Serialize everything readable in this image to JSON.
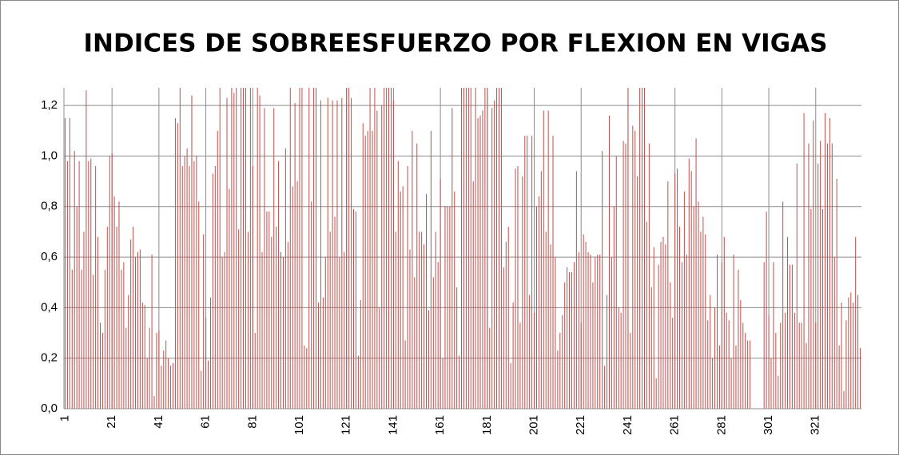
{
  "chart_data": {
    "type": "bar",
    "title": "INDICES DE SOBREESFUERZO POR FLEXION EN VIGAS",
    "color": "#c0504d",
    "grid": true,
    "ylim": [
      0,
      1.27
    ],
    "yticks": [
      {
        "value": 0,
        "label": "0,0"
      },
      {
        "value": 0.2,
        "label": "0,2"
      },
      {
        "value": 0.4,
        "label": "0,4"
      },
      {
        "value": 0.6,
        "label": "0,6"
      },
      {
        "value": 0.8,
        "label": "0,8"
      },
      {
        "value": 1.0,
        "label": "1,0"
      },
      {
        "value": 1.2,
        "label": "1,2"
      }
    ],
    "categories": [
      "1",
      null,
      null,
      null,
      null,
      null,
      null,
      null,
      null,
      null,
      null,
      null,
      null,
      null,
      null,
      null,
      null,
      null,
      null,
      null,
      "21",
      null,
      null,
      null,
      null,
      null,
      null,
      null,
      null,
      null,
      null,
      null,
      null,
      null,
      null,
      null,
      null,
      null,
      null,
      null,
      "41",
      null,
      null,
      null,
      null,
      null,
      null,
      null,
      null,
      null,
      null,
      null,
      null,
      null,
      null,
      null,
      null,
      null,
      null,
      null,
      "61",
      null,
      null,
      null,
      null,
      null,
      null,
      null,
      null,
      null,
      null,
      null,
      null,
      null,
      null,
      null,
      null,
      null,
      null,
      null,
      "81",
      null,
      null,
      null,
      null,
      null,
      null,
      null,
      null,
      null,
      null,
      null,
      null,
      null,
      null,
      null,
      null,
      null,
      null,
      null,
      "101",
      null,
      null,
      null,
      null,
      null,
      null,
      null,
      null,
      null,
      null,
      null,
      null,
      null,
      null,
      null,
      null,
      null,
      null,
      null,
      "121",
      null,
      null,
      null,
      null,
      null,
      null,
      null,
      null,
      null,
      null,
      null,
      null,
      null,
      null,
      null,
      null,
      null,
      null,
      null,
      "141",
      null,
      null,
      null,
      null,
      null,
      null,
      null,
      null,
      null,
      null,
      null,
      null,
      null,
      null,
      null,
      null,
      null,
      null,
      null,
      "161",
      null,
      null,
      null,
      null,
      null,
      null,
      null,
      null,
      null,
      null,
      null,
      null,
      null,
      null,
      null,
      null,
      null,
      null,
      null,
      "181",
      null,
      null,
      null,
      null,
      null,
      null,
      null,
      null,
      null,
      null,
      null,
      null,
      null,
      null,
      null,
      null,
      null,
      null,
      null,
      "201",
      null,
      null,
      null,
      null,
      null,
      null,
      null,
      null,
      null,
      null,
      null,
      null,
      null,
      null,
      null,
      null,
      null,
      null,
      null,
      "221",
      null,
      null,
      null,
      null,
      null,
      null,
      null,
      null,
      null,
      null,
      null,
      null,
      null,
      null,
      null,
      null,
      null,
      null,
      null,
      "241",
      null,
      null,
      null,
      null,
      null,
      null,
      null,
      null,
      null,
      null,
      null,
      null,
      null,
      null,
      null,
      null,
      null,
      null,
      null,
      "261",
      null,
      null,
      null,
      null,
      null,
      null,
      null,
      null,
      null,
      null,
      null,
      null,
      null,
      null,
      null,
      null,
      null,
      null,
      null,
      "281",
      null,
      null,
      null,
      null,
      null,
      null,
      null,
      null,
      null,
      null,
      null,
      null,
      null,
      null,
      null,
      null,
      null,
      null,
      null,
      "301",
      null,
      null,
      null,
      null,
      null,
      null,
      null,
      null,
      null,
      null,
      null,
      null,
      null,
      null,
      null,
      null,
      null,
      null,
      null,
      "321",
      null,
      null,
      null,
      null,
      null,
      null,
      null,
      null,
      null,
      null,
      null,
      null,
      null,
      null,
      null,
      null,
      null,
      null,
      null
    ],
    "values": [
      1.15,
      0.98,
      1.15,
      0.55,
      1.02,
      0.8,
      0.98,
      0.55,
      0.7,
      1.26,
      0.98,
      0.99,
      0.53,
      0.96,
      0.68,
      0.34,
      0.3,
      0.55,
      0.72,
      1.0,
      1.01,
      0.84,
      0.72,
      0.82,
      0.55,
      0.58,
      0.32,
      0.45,
      0.67,
      0.72,
      0.6,
      0.62,
      0.63,
      0.42,
      0.41,
      0.2,
      0.32,
      0.61,
      0.05,
      0.3,
      0.31,
      0.17,
      0.23,
      0.27,
      0.2,
      0.17,
      0.18,
      1.15,
      1.13,
      1.27,
      0.96,
      1.0,
      1.03,
      0.96,
      1.24,
      0.98,
      1.0,
      0.82,
      0.15,
      0.69,
      0.36,
      0.19,
      0.44,
      0.93,
      0.96,
      1.1,
      1.27,
      0.6,
      0.62,
      1.23,
      0.87,
      1.27,
      1.25,
      1.27,
      0.71,
      1.27,
      1.27,
      1.27,
      0.7,
      1.27,
      0.96,
      0.3,
      1.27,
      1.24,
      0.62,
      1.19,
      0.78,
      0.78,
      0.68,
      1.19,
      0.72,
      0.98,
      0.62,
      0.6,
      1.03,
      0.66,
      1.27,
      0.88,
      1.21,
      0.9,
      1.27,
      1.27,
      0.25,
      0.24,
      1.27,
      0.82,
      1.27,
      1.27,
      0.42,
      1.22,
      0.44,
      0.6,
      1.23,
      0.7,
      1.22,
      0.76,
      1.22,
      0.6,
      1.23,
      0.62,
      1.27,
      1.27,
      1.23,
      0.79,
      0.78,
      0.21,
      0.43,
      1.13,
      1.08,
      1.1,
      1.27,
      1.1,
      1.27,
      1.18,
      0.4,
      1.2,
      1.27,
      1.27,
      1.27,
      1.27,
      1.22,
      0.7,
      0.98,
      0.86,
      0.88,
      0.27,
      0.96,
      0.63,
      1.1,
      0.52,
      1.05,
      0.7,
      0.7,
      0.65,
      0.85,
      0.39,
      1.1,
      0.52,
      0.7,
      0.58,
      0.91,
      0.2,
      0.8,
      0.8,
      0.8,
      1.19,
      0.86,
      0.48,
      0.21,
      1.27,
      1.27,
      1.27,
      1.27,
      1.27,
      0.9,
      1.27,
      1.15,
      1.16,
      1.18,
      1.27,
      1.27,
      0.32,
      1.19,
      1.22,
      1.27,
      1.27,
      1.27,
      0.56,
      0.66,
      0.72,
      0.18,
      0.42,
      0.95,
      0.96,
      0.34,
      0.92,
      1.08,
      1.08,
      0.45,
      1.08,
      0.38,
      0.8,
      0.84,
      0.94,
      1.18,
      0.7,
      1.18,
      0.65,
      1.08,
      0.6,
      0.23,
      0.3,
      0.37,
      0.5,
      0.56,
      0.54,
      0.54,
      0.58,
      0.94,
      0.62,
      0.34,
      0.69,
      0.66,
      0.62,
      0.61,
      0.5,
      0.6,
      0.61,
      0.61,
      1.02,
      0.17,
      0.45,
      1.16,
      0.6,
      0.8,
      1.0,
      0.4,
      0.38,
      1.06,
      1.05,
      1.27,
      0.3,
      1.12,
      1.1,
      0.92,
      1.27,
      1.27,
      1.27,
      0.74,
      1.05,
      0.48,
      0.64,
      0.12,
      0.57,
      0.66,
      0.68,
      0.65,
      0.9,
      0.5,
      0.36,
      0.93,
      0.95,
      0.72,
      0.58,
      0.86,
      0.61,
      0.99,
      0.94,
      0.8,
      1.07,
      0.82,
      0.7,
      0.76,
      0.69,
      0.35,
      0.45,
      0.2,
      0.4,
      0.61,
      0.25,
      0.58,
      0.68,
      0.38,
      0.35,
      0.2,
      0.61,
      0.25,
      0.55,
      0.43,
      0.34,
      0.3,
      0.27,
      0.27,
      0,
      0,
      0,
      0,
      0,
      0.58,
      0.78,
      0.37,
      0.2,
      0.58,
      0.3,
      0.13,
      0.34,
      0.82,
      0.38,
      0.68,
      0.57,
      0.57,
      0.38,
      0.97,
      0.34,
      0.34,
      1.17,
      0.26,
      1.05,
      0.79,
      1.14,
      0.34,
      0.97,
      1.06,
      0.79,
      1.17,
      1.05,
      1.15,
      1.05,
      0.6,
      0.91,
      0.25,
      0.42,
      0.07,
      0.35,
      0.44,
      0.46,
      0.42,
      0.68,
      0.45,
      0.24
    ]
  }
}
